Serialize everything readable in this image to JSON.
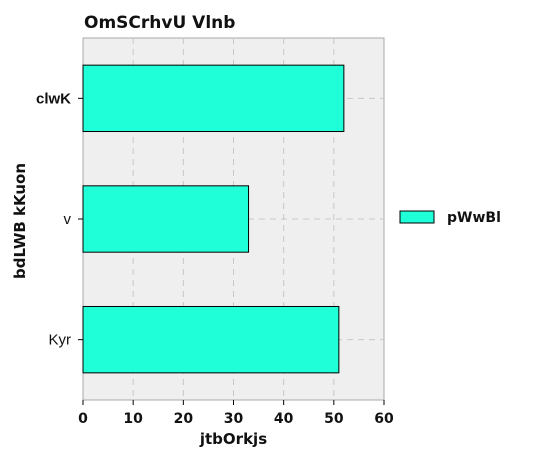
{
  "chart_data": {
    "type": "bar",
    "orientation": "horizontal",
    "title": "OmSCrhvU Vlnb",
    "xlabel": "jtbOrkjs",
    "ylabel": "bdLWB kKuon",
    "categories": [
      "clwK",
      "v",
      "Kyr"
    ],
    "category_bold": [
      true,
      false,
      false
    ],
    "series": [
      {
        "name": "pWwBl",
        "values": [
          52,
          33,
          51
        ],
        "color": "#1fffd8"
      }
    ],
    "xlim": [
      0,
      60
    ],
    "xticks": [
      0,
      10,
      20,
      30,
      40,
      50,
      60
    ],
    "grid": true,
    "legend_position": "right"
  }
}
